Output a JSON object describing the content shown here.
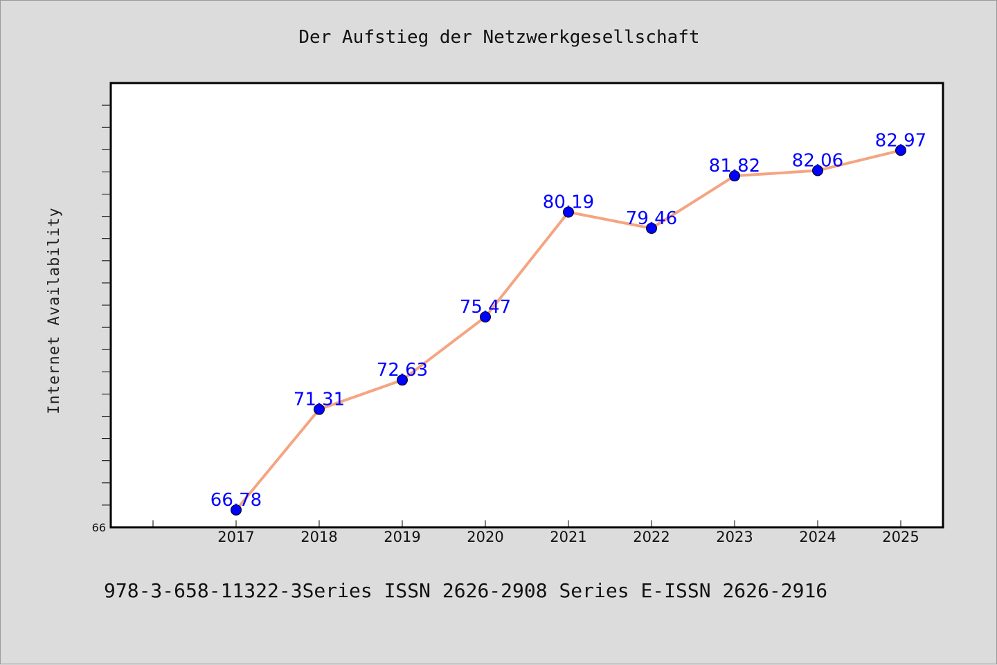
{
  "chart_data": {
    "type": "line",
    "title": "Der Aufstieg der Netzwerkgesellschaft",
    "xlabel": "",
    "ylabel": "Internet Availability",
    "categories": [
      "2017",
      "2018",
      "2019",
      "2020",
      "2021",
      "2022",
      "2023",
      "2024",
      "2025"
    ],
    "series": [
      {
        "values": [
          66.78,
          71.31,
          72.63,
          75.47,
          80.19,
          79.46,
          81.82,
          82.06,
          82.97
        ],
        "labels": [
          "66.78",
          "71.31",
          "72.63",
          "75.47",
          "80.19",
          "79.46",
          "81.82",
          "82.06",
          "82.97"
        ]
      }
    ],
    "ylim": [
      66,
      86
    ],
    "y_tick_labels": [
      "66"
    ],
    "grid": false,
    "legend": "none"
  },
  "footer_text": "978-3-658-11322-3Series ISSN 2626-2908 Series E-ISSN 2626-2916",
  "colors": {
    "line": "#f4a582",
    "marker": "#0000ff",
    "label": "#0000ff",
    "plot_bg": "#ffffff",
    "figure_bg": "#dcdcdc"
  }
}
